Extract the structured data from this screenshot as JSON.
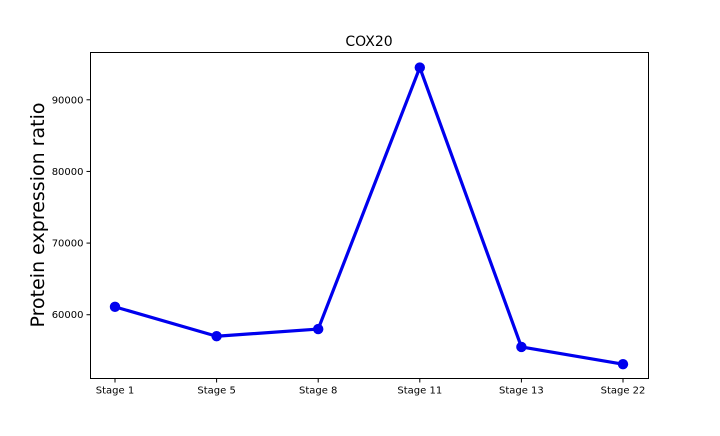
{
  "chart_data": {
    "type": "line",
    "title": "COX20",
    "xlabel": "",
    "ylabel": "Protein expression ratio",
    "categories": [
      "Stage 1",
      "Stage 5",
      "Stage 8",
      "Stage 11",
      "Stage 13",
      "Stage 22"
    ],
    "series": [
      {
        "values": [
          61100,
          57000,
          58000,
          94500,
          55500,
          53100
        ],
        "color": "#0000ee"
      }
    ],
    "ylim": [
      51100,
      96600
    ],
    "yticks": [
      60000,
      70000,
      80000,
      90000
    ],
    "grid": false,
    "legend": "none"
  }
}
